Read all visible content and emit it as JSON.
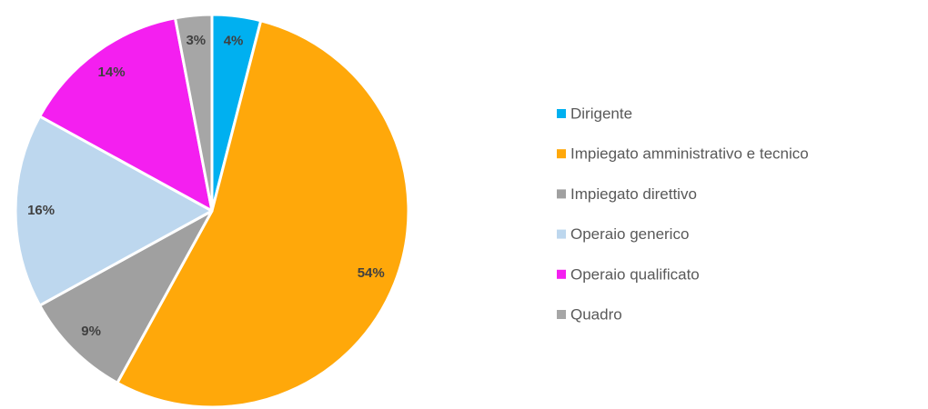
{
  "chart_data": {
    "type": "pie",
    "categories": [
      "Dirigente",
      "Impiegato amministrativo e tecnico",
      "Impiegato direttivo",
      "Operaio generico",
      "Operaio qualificato",
      "Quadro"
    ],
    "values": [
      4,
      54,
      9,
      16,
      14,
      3
    ],
    "value_labels": [
      "4%",
      "54%",
      "9%",
      "16%",
      "14%",
      "3%"
    ],
    "colors": [
      "#00b0f0",
      "#ffa80a",
      "#a0a0a0",
      "#bdd7ee",
      "#f41ff0",
      "#a6a6a6"
    ],
    "legend": "right"
  }
}
